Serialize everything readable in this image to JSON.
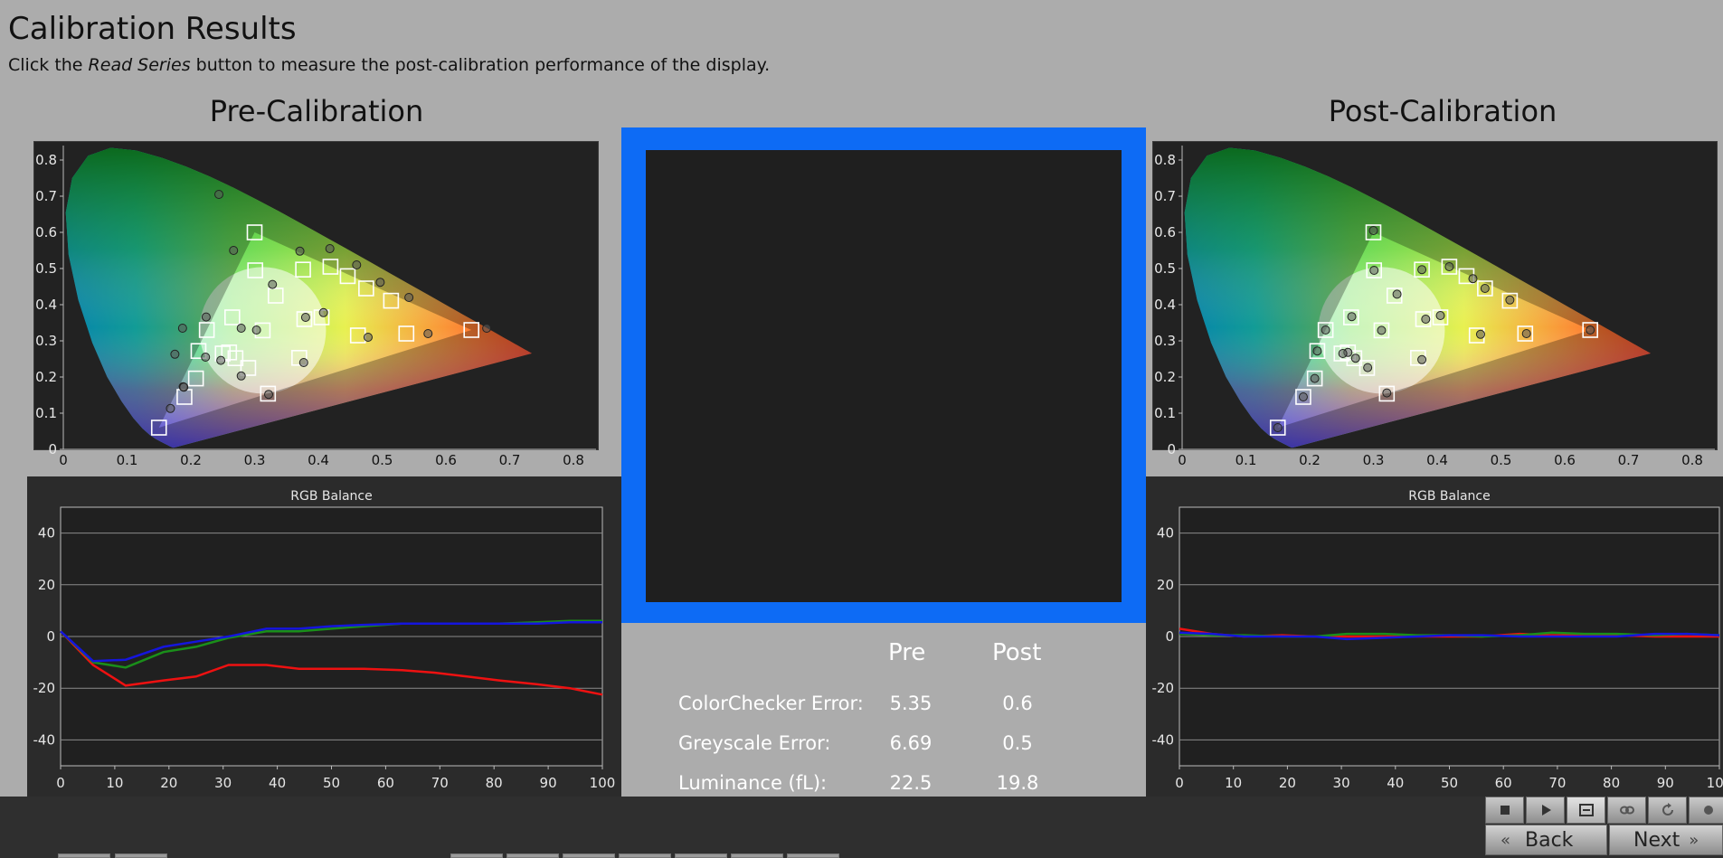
{
  "header": {
    "title": "Calibration Results",
    "instruction_before": "Click the ",
    "instruction_italic": "Read Series",
    "instruction_after": " button to measure the post-calibration performance of the display."
  },
  "pre": {
    "heading": "Pre-Calibration",
    "cie": {
      "targets": [
        [
          0.64,
          0.33
        ],
        [
          0.3,
          0.6
        ],
        [
          0.15,
          0.06
        ],
        [
          0.225,
          0.33
        ],
        [
          0.321,
          0.154
        ],
        [
          0.419,
          0.505
        ],
        [
          0.3127,
          0.329
        ],
        [
          0.376,
          0.497
        ],
        [
          0.301,
          0.495
        ],
        [
          0.265,
          0.365
        ],
        [
          0.212,
          0.272
        ],
        [
          0.208,
          0.196
        ],
        [
          0.26,
          0.268
        ],
        [
          0.378,
          0.36
        ],
        [
          0.405,
          0.365
        ],
        [
          0.475,
          0.445
        ],
        [
          0.514,
          0.411
        ],
        [
          0.446,
          0.479
        ],
        [
          0.19,
          0.145
        ],
        [
          0.27,
          0.252
        ],
        [
          0.37,
          0.253
        ],
        [
          0.333,
          0.425
        ],
        [
          0.29,
          0.225
        ],
        [
          0.25,
          0.265
        ],
        [
          0.462,
          0.315
        ],
        [
          0.538,
          0.32
        ]
      ],
      "measured": [
        [
          0.664,
          0.335
        ],
        [
          0.244,
          0.705
        ],
        [
          0.168,
          0.113
        ],
        [
          0.224,
          0.366
        ],
        [
          0.322,
          0.152
        ],
        [
          0.418,
          0.555
        ],
        [
          0.303,
          0.33
        ],
        [
          0.371,
          0.548
        ],
        [
          0.267,
          0.55
        ],
        [
          0.187,
          0.335
        ],
        [
          0.175,
          0.263
        ],
        [
          0.188,
          0.173
        ],
        [
          0.223,
          0.255
        ],
        [
          0.408,
          0.378
        ],
        [
          0.38,
          0.365
        ],
        [
          0.46,
          0.51
        ],
        [
          0.497,
          0.462
        ],
        [
          0.542,
          0.42
        ],
        [
          0.189,
          0.172
        ],
        [
          0.247,
          0.246
        ],
        [
          0.377,
          0.24
        ],
        [
          0.328,
          0.456
        ],
        [
          0.279,
          0.203
        ],
        [
          0.279,
          0.335
        ],
        [
          0.478,
          0.31
        ],
        [
          0.572,
          0.32
        ]
      ]
    },
    "rgb_title": "RGB Balance",
    "rgb": {
      "x": [
        0,
        6,
        12,
        19,
        25,
        31,
        38,
        44,
        50,
        56,
        63,
        69,
        75,
        81,
        88,
        94,
        100
      ],
      "red": [
        2,
        -11,
        -19,
        -17,
        -15.5,
        -11,
        -11,
        -12.5,
        -12.5,
        -12.5,
        -13,
        -14,
        -15.5,
        -17,
        -18.5,
        -20,
        -22.5
      ],
      "green": [
        2,
        -10,
        -12,
        -6,
        -4,
        -0.5,
        2,
        2,
        3,
        4,
        5,
        5,
        5,
        5,
        5.5,
        6,
        6
      ],
      "blue": [
        2,
        -9.5,
        -9,
        -4,
        -2,
        0,
        3,
        3,
        4,
        4.5,
        5,
        5,
        5,
        5,
        5,
        5.5,
        5.5
      ]
    }
  },
  "post": {
    "heading": "Post-Calibration",
    "cie": {
      "targets": [
        [
          0.64,
          0.33
        ],
        [
          0.3,
          0.6
        ],
        [
          0.15,
          0.06
        ],
        [
          0.225,
          0.33
        ],
        [
          0.321,
          0.154
        ],
        [
          0.419,
          0.505
        ],
        [
          0.3127,
          0.329
        ],
        [
          0.376,
          0.497
        ],
        [
          0.301,
          0.495
        ],
        [
          0.265,
          0.365
        ],
        [
          0.212,
          0.272
        ],
        [
          0.208,
          0.196
        ],
        [
          0.26,
          0.268
        ],
        [
          0.378,
          0.36
        ],
        [
          0.405,
          0.365
        ],
        [
          0.475,
          0.445
        ],
        [
          0.514,
          0.411
        ],
        [
          0.446,
          0.479
        ],
        [
          0.19,
          0.145
        ],
        [
          0.27,
          0.252
        ],
        [
          0.37,
          0.253
        ],
        [
          0.333,
          0.425
        ],
        [
          0.29,
          0.225
        ],
        [
          0.25,
          0.265
        ],
        [
          0.462,
          0.315
        ],
        [
          0.538,
          0.32
        ]
      ],
      "measured": [
        [
          0.64,
          0.33
        ],
        [
          0.3,
          0.605
        ],
        [
          0.15,
          0.06
        ],
        [
          0.225,
          0.33
        ],
        [
          0.321,
          0.156
        ],
        [
          0.419,
          0.505
        ],
        [
          0.3127,
          0.329
        ],
        [
          0.376,
          0.497
        ],
        [
          0.301,
          0.495
        ],
        [
          0.266,
          0.367
        ],
        [
          0.212,
          0.272
        ],
        [
          0.208,
          0.196
        ],
        [
          0.26,
          0.268
        ],
        [
          0.382,
          0.36
        ],
        [
          0.405,
          0.37
        ],
        [
          0.475,
          0.445
        ],
        [
          0.514,
          0.413
        ],
        [
          0.456,
          0.472
        ],
        [
          0.19,
          0.145
        ],
        [
          0.272,
          0.252
        ],
        [
          0.376,
          0.248
        ],
        [
          0.337,
          0.429
        ],
        [
          0.291,
          0.226
        ],
        [
          0.252,
          0.265
        ],
        [
          0.468,
          0.318
        ],
        [
          0.54,
          0.32
        ]
      ]
    },
    "rgb_title": "RGB Balance",
    "rgb": {
      "x": [
        0,
        6,
        12,
        19,
        25,
        31,
        38,
        44,
        50,
        56,
        63,
        69,
        75,
        81,
        88,
        94,
        100
      ],
      "red": [
        3,
        1,
        0,
        0.5,
        0,
        0,
        0,
        0,
        0,
        0,
        1,
        0.5,
        0.5,
        0.5,
        0,
        0,
        0
      ],
      "green": [
        1,
        0.5,
        0.5,
        0,
        0,
        1,
        1,
        0.5,
        0.5,
        0,
        0.5,
        1.5,
        1,
        1,
        0.5,
        1,
        0.5
      ],
      "blue": [
        1.5,
        1,
        0,
        0,
        0,
        -1,
        -0.5,
        0,
        0.5,
        0.5,
        0,
        0,
        0,
        0,
        1,
        1,
        0.5
      ]
    }
  },
  "results": {
    "col_pre": "Pre",
    "col_post": "Post",
    "rows": [
      {
        "label": "ColorChecker Error:",
        "pre": "5.35",
        "post": "0.6"
      },
      {
        "label": "Greyscale Error:",
        "pre": "6.69",
        "post": "0.5"
      },
      {
        "label": "Luminance (fL):",
        "pre": "22.5",
        "post": "19.8"
      }
    ]
  },
  "cie_axes": {
    "x_ticks": [
      "0",
      "0.1",
      "0.2",
      "0.3",
      "0.4",
      "0.5",
      "0.6",
      "0.7",
      "0.8"
    ],
    "y_ticks": [
      "0",
      "0.1",
      "0.2",
      "0.3",
      "0.4",
      "0.5",
      "0.6",
      "0.7",
      "0.8"
    ]
  },
  "rgb_axes": {
    "x_ticks": [
      "0",
      "10",
      "20",
      "30",
      "40",
      "50",
      "60",
      "70",
      "80",
      "90",
      "100"
    ],
    "y_ticks": [
      "40",
      "20",
      "0",
      "-20",
      "-40"
    ]
  },
  "toolbar": {
    "buttons": [
      "stop-icon",
      "play-icon",
      "series-icon",
      "loop-icon",
      "refresh-icon",
      "extra-icon"
    ],
    "active": "series-icon"
  },
  "nav": {
    "back_label": "Back",
    "next_label": "Next"
  }
}
